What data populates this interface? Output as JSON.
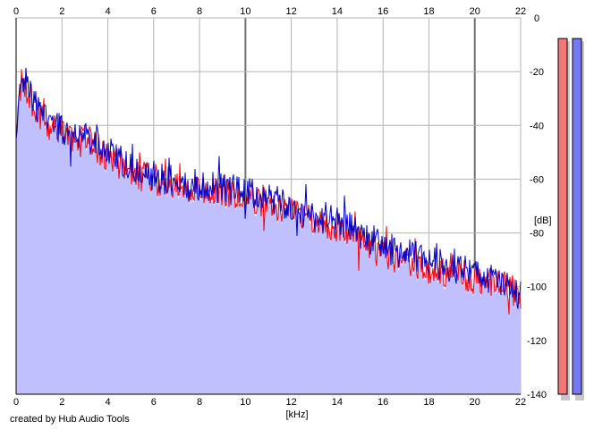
{
  "chart_data": {
    "type": "area",
    "xlabel": "[kHz]",
    "ylabel": "[dB]",
    "xlim": [
      0,
      22
    ],
    "ylim": [
      -140,
      0
    ],
    "x_ticks": [
      "0",
      "2",
      "4",
      "6",
      "8",
      "10",
      "12",
      "14",
      "16",
      "18",
      "20",
      "22"
    ],
    "y_ticks": [
      "0",
      "-20",
      "-40",
      "-60",
      "-80",
      "-100",
      "-120",
      "-140"
    ],
    "grid": true,
    "series": [
      {
        "color": "#ff0000",
        "x": [
          0,
          0.2,
          0.4,
          0.6,
          1,
          1.5,
          2,
          2.5,
          3,
          3.5,
          4,
          5,
          6,
          7,
          8,
          9,
          10,
          11,
          12,
          13,
          14,
          15,
          16,
          17,
          18,
          19,
          20,
          21,
          22
        ],
        "y": [
          -45,
          -22,
          -24,
          -30,
          -37,
          -40,
          -43,
          -45,
          -45,
          -48,
          -52,
          -56,
          -60,
          -62,
          -63,
          -64,
          -66,
          -69,
          -73,
          -76,
          -78,
          -84,
          -88,
          -91,
          -93,
          -95,
          -97,
          -99,
          -103
        ]
      },
      {
        "color": "#0000cc",
        "x": [
          0,
          0.2,
          0.4,
          0.6,
          1,
          1.5,
          2,
          2.5,
          3,
          3.5,
          4,
          5,
          6,
          7,
          8,
          9,
          10,
          11,
          12,
          13,
          14,
          15,
          16,
          17,
          18,
          19,
          20,
          21,
          22
        ],
        "y": [
          -45,
          -24,
          -23,
          -28,
          -35,
          -39,
          -42,
          -44,
          -43,
          -47,
          -50,
          -55,
          -59,
          -61,
          -62,
          -63,
          -65,
          -67,
          -71,
          -74,
          -76,
          -80,
          -85,
          -88,
          -90,
          -93,
          -95,
          -98,
          -103
        ]
      }
    ],
    "fill_color": "#c0c0ff",
    "meters": [
      {
        "color": "#f07878",
        "level": 0.98
      },
      {
        "color": "#7878f0",
        "level": 0.98
      }
    ]
  },
  "footer": {
    "credit": "created by Hub Audio Tools"
  }
}
